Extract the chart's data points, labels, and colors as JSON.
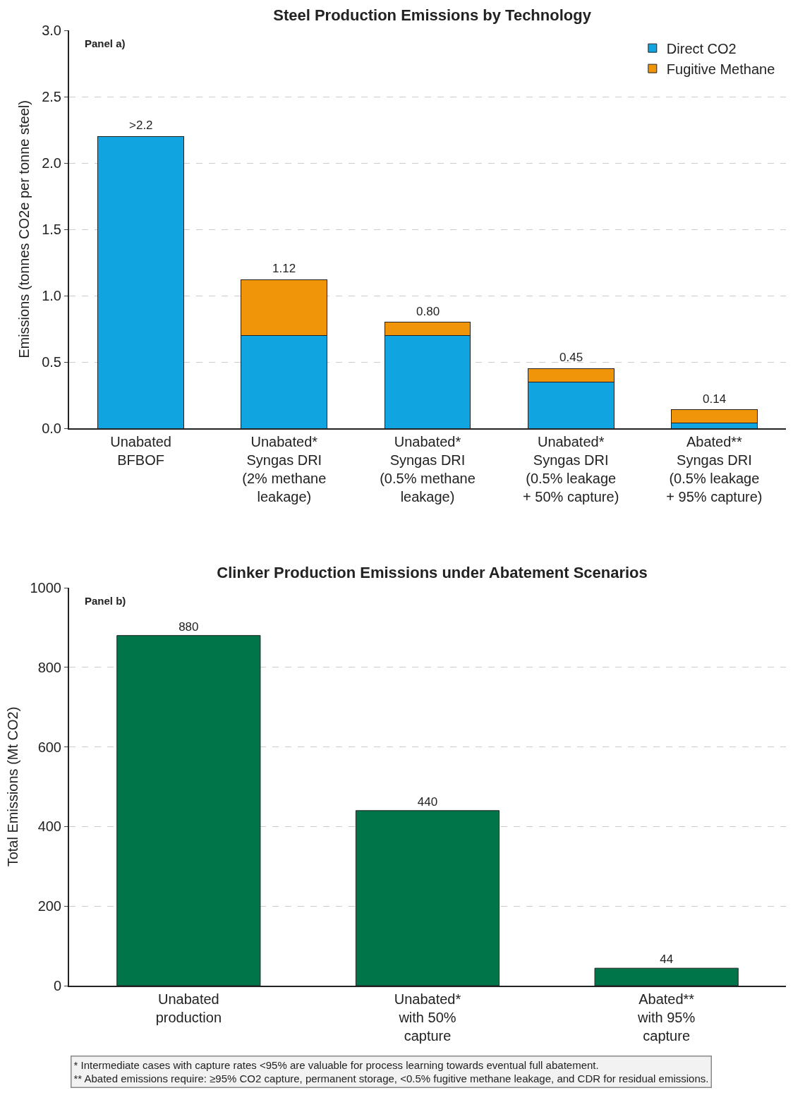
{
  "chart_data": [
    {
      "type": "bar",
      "title": "Steel Production Emissions by Technology",
      "ylabel": "Emissions (tonnes CO2e per tonne steel)",
      "categories": [
        "Unabated\nBFBOF",
        "Unabated*\nSyngas DRI\n(2% methane\nleakage)",
        "Unabated*\nSyngas DRI\n(0.5% methane\nleakage)",
        "Unabated*\nSyngas DRI\n(0.5% leakage\n+ 50% capture)",
        "Abated**\nSyngas DRI\n(0.5% leakage\n+ 95% capture)"
      ],
      "stacked": true,
      "series": [
        {
          "name": "Direct CO2",
          "color": "#10a5e0",
          "values": [
            2.2,
            0.7,
            0.7,
            0.35,
            0.04
          ]
        },
        {
          "name": "Fugitive Methane",
          "color": "#f0950a",
          "values": [
            null,
            0.42,
            0.1,
            0.1,
            0.1
          ]
        }
      ],
      "totals": [
        ">2.2",
        "1.12",
        "0.80",
        "0.45",
        "0.14"
      ],
      "ylim": [
        0,
        3
      ],
      "yticks": [
        {
          "value": 0,
          "label": "0.0"
        },
        {
          "value": 0.5,
          "label": "0.5"
        },
        {
          "value": 1,
          "label": "1.0"
        },
        {
          "value": 1.5,
          "label": "1.5"
        },
        {
          "value": 2,
          "label": "2.0"
        },
        {
          "value": 2.5,
          "label": "2.5"
        },
        {
          "value": 3,
          "label": "3.0"
        }
      ],
      "grid": "y",
      "legend": "top right",
      "annotations": [
        "Panel a)"
      ]
    },
    {
      "type": "bar",
      "title": "Clinker Production Emissions under Abatement Scenarios",
      "ylabel": "Total Emissions (Mt CO2)",
      "categories": [
        "Unabated\nproduction",
        "Unabated*\nwith 50%\ncapture",
        "Abated**\nwith 95%\ncapture"
      ],
      "values": [
        880,
        440,
        44
      ],
      "color": "#00754a",
      "data_labels": true,
      "ylim": [
        0,
        1000
      ],
      "yticks": [
        0,
        200,
        400,
        600,
        800,
        1000
      ],
      "grid": "y",
      "legend": false,
      "annotations": [
        "Panel b)",
        "* Intermediate cases with capture rates <95% are valuable for process learning towards eventual full abatement.\n** Abated emissions require: ≥95% CO2 capture, permanent storage, <0.5% fugitive methane leakage, and CDR for residual emissions."
      ]
    }
  ]
}
